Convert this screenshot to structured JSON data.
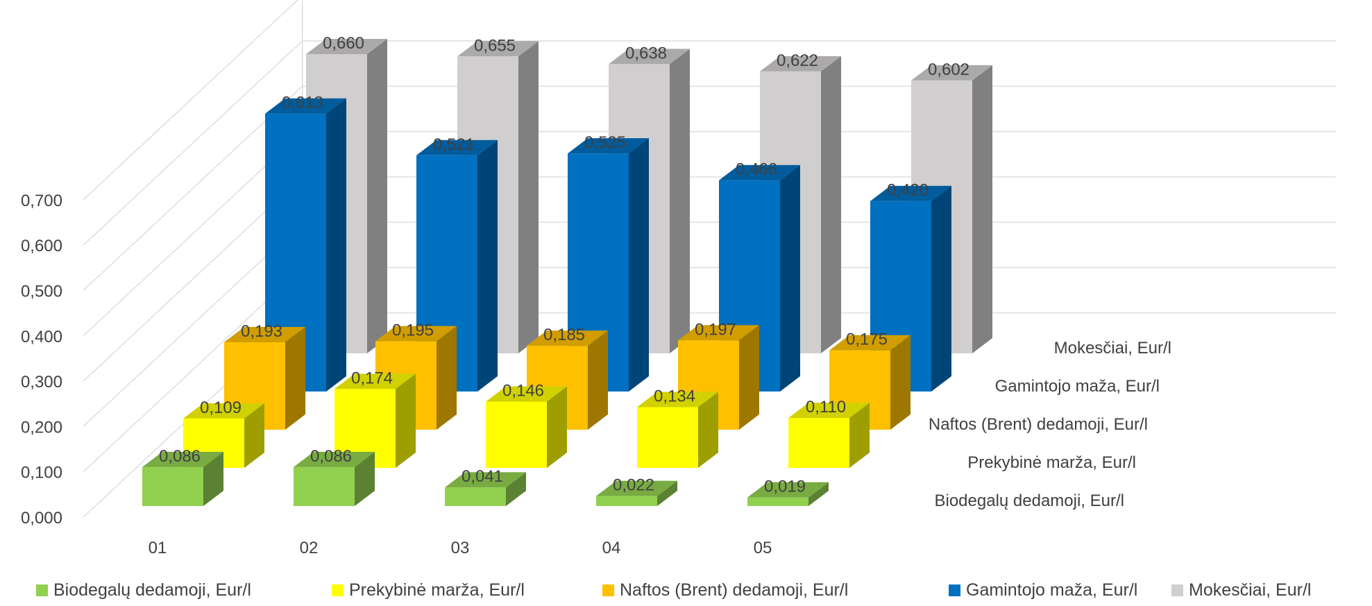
{
  "chart_data": {
    "type": "bar",
    "variant": "3d-clustered-depth",
    "categories": [
      "01",
      "02",
      "03",
      "04",
      "05"
    ],
    "y_ticks": [
      "0,000",
      "0,100",
      "0,200",
      "0,300",
      "0,400",
      "0,500",
      "0,600",
      "0,700"
    ],
    "ylim": [
      0,
      0.7
    ],
    "grid": true,
    "legend_position": "bottom",
    "series": [
      {
        "name": "Biodegalų dedamoji, Eur/l",
        "values": [
          0.086,
          0.086,
          0.041,
          0.022,
          0.019
        ],
        "labels": [
          "0,086",
          "0,086",
          "0,041",
          "0,022",
          "0,019"
        ],
        "color": "#92D050"
      },
      {
        "name": "Prekybinė marža, Eur/l",
        "values": [
          0.109,
          0.174,
          0.146,
          0.134,
          0.11
        ],
        "labels": [
          "0,109",
          "0,174",
          "0,146",
          "0,134",
          "0,110"
        ],
        "color": "#FFFF00"
      },
      {
        "name": "Naftos (Brent) dedamoji, Eur/l",
        "values": [
          0.193,
          0.195,
          0.185,
          0.197,
          0.175
        ],
        "labels": [
          "0,193",
          "0,195",
          "0,185",
          "0,197",
          "0,175"
        ],
        "color": "#FFC000"
      },
      {
        "name": "Gamintojo maža, Eur/l",
        "values": [
          0.613,
          0.521,
          0.525,
          0.466,
          0.42
        ],
        "labels": [
          "0,613",
          "0,521",
          "0,525",
          "0,466",
          "0,420"
        ],
        "color": "#0070C0"
      },
      {
        "name": "Mokesčiai, Eur/l",
        "values": [
          0.66,
          0.655,
          0.638,
          0.622,
          0.602
        ],
        "labels": [
          "0,660",
          "0,655",
          "0,638",
          "0,622",
          "0,602"
        ],
        "color": "#D0CECE"
      }
    ]
  }
}
